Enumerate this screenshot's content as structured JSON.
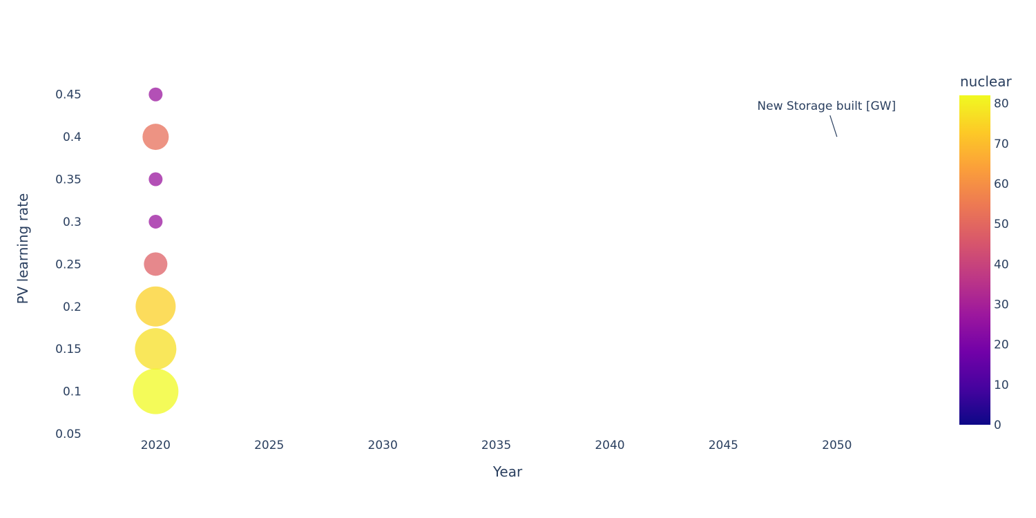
{
  "chart_data": {
    "type": "scatter",
    "xlabel": "Year",
    "ylabel": "PV learning rate",
    "xlim": [
      2017.1,
      2053.9
    ],
    "ylim": [
      0.05,
      0.475
    ],
    "x_ticks": [
      2020,
      2025,
      2030,
      2035,
      2040,
      2045,
      2050
    ],
    "y_ticks": [
      0.05,
      0.1,
      0.15,
      0.2,
      0.25,
      0.3,
      0.35,
      0.4,
      0.45
    ],
    "grid": false,
    "points": [
      {
        "x": 2020,
        "y": 0.45,
        "nuclear": 27,
        "size": 10
      },
      {
        "x": 2020,
        "y": 0.4,
        "nuclear": 52,
        "size": 19
      },
      {
        "x": 2020,
        "y": 0.35,
        "nuclear": 27,
        "size": 10
      },
      {
        "x": 2020,
        "y": 0.3,
        "nuclear": 27,
        "size": 10
      },
      {
        "x": 2020,
        "y": 0.25,
        "nuclear": 48,
        "size": 17
      },
      {
        "x": 2020,
        "y": 0.2,
        "nuclear": 74,
        "size": 29
      },
      {
        "x": 2020,
        "y": 0.15,
        "nuclear": 77,
        "size": 30
      },
      {
        "x": 2020,
        "y": 0.1,
        "nuclear": 82,
        "size": 33
      }
    ],
    "colorbar": {
      "title": "nuclear",
      "range": [
        0,
        82
      ],
      "ticks": [
        0,
        10,
        20,
        30,
        40,
        50,
        60,
        70,
        80
      ],
      "colorscale": [
        "#0d0887",
        "#46039f",
        "#7201a8",
        "#9c179e",
        "#bd3786",
        "#d8576b",
        "#ed7953",
        "#fb9f3a",
        "#fdca26",
        "#f0f921"
      ]
    },
    "annotation": {
      "text": "New Storage built [GW]",
      "x": 2050,
      "y": 0.4
    }
  }
}
